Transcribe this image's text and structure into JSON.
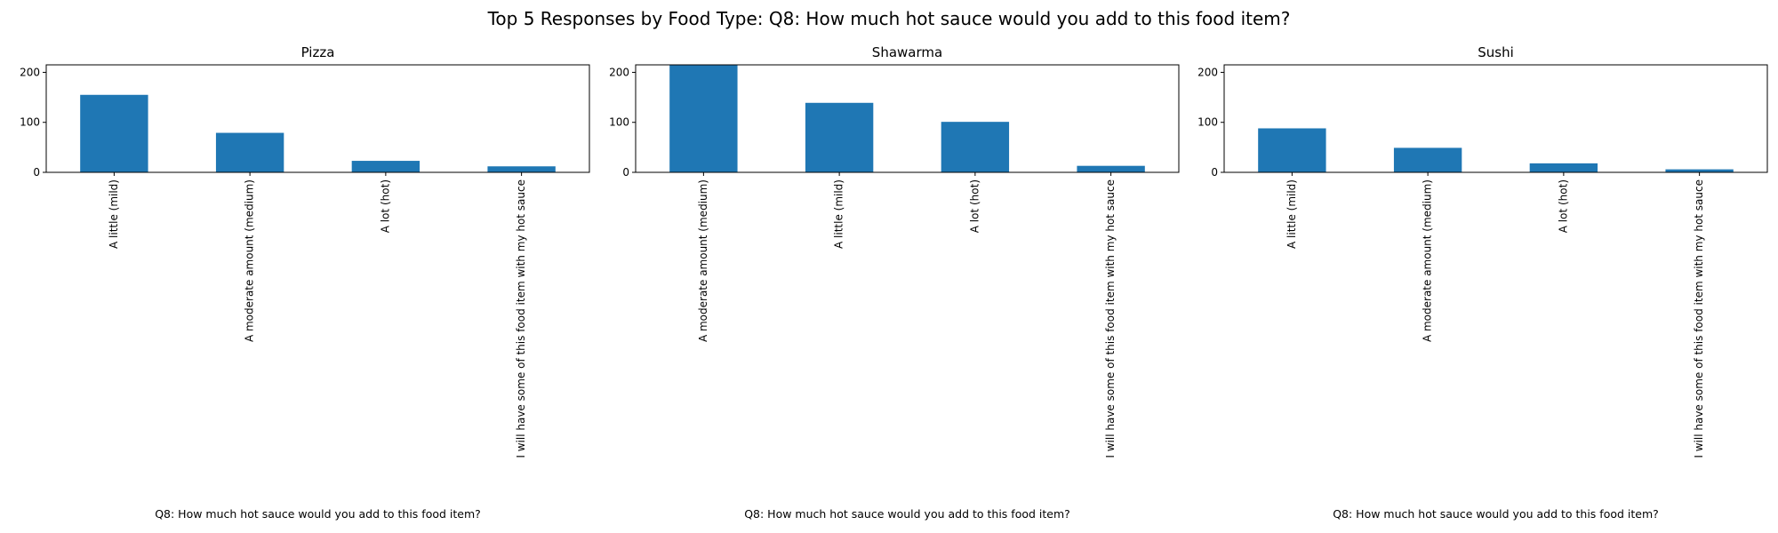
{
  "figure": {
    "suptitle": "Top 5 Responses by Food Type: Q8: How much hot sauce would you add to this food item?"
  },
  "chart_data": [
    {
      "type": "bar",
      "title": "Pizza",
      "xlabel": "Q8: How much hot sauce would you add to this food item?",
      "ylabel": "",
      "ylim": [
        0,
        215
      ],
      "yticks": [
        0,
        100,
        200
      ],
      "categories": [
        "A little (mild)",
        "A moderate amount (medium)",
        "A lot (hot)",
        "I will have some of this food item with my hot sauce"
      ],
      "values": [
        155,
        79,
        23,
        12
      ],
      "color": "#1f77b4"
    },
    {
      "type": "bar",
      "title": "Shawarma",
      "xlabel": "Q8: How much hot sauce would you add to this food item?",
      "ylabel": "",
      "ylim": [
        0,
        215
      ],
      "yticks": [
        0,
        100,
        200
      ],
      "categories": [
        "A moderate amount (medium)",
        "A little (mild)",
        "A lot (hot)",
        "I will have some of this food item with my hot sauce"
      ],
      "values": [
        215,
        139,
        101,
        13
      ],
      "color": "#1f77b4"
    },
    {
      "type": "bar",
      "title": "Sushi",
      "xlabel": "Q8: How much hot sauce would you add to this food item?",
      "ylabel": "",
      "ylim": [
        0,
        215
      ],
      "yticks": [
        0,
        100,
        200
      ],
      "categories": [
        "A little (mild)",
        "A moderate amount (medium)",
        "A lot (hot)",
        "I will have some of this food item with my hot sauce"
      ],
      "values": [
        88,
        49,
        18,
        6
      ],
      "color": "#1f77b4"
    }
  ]
}
